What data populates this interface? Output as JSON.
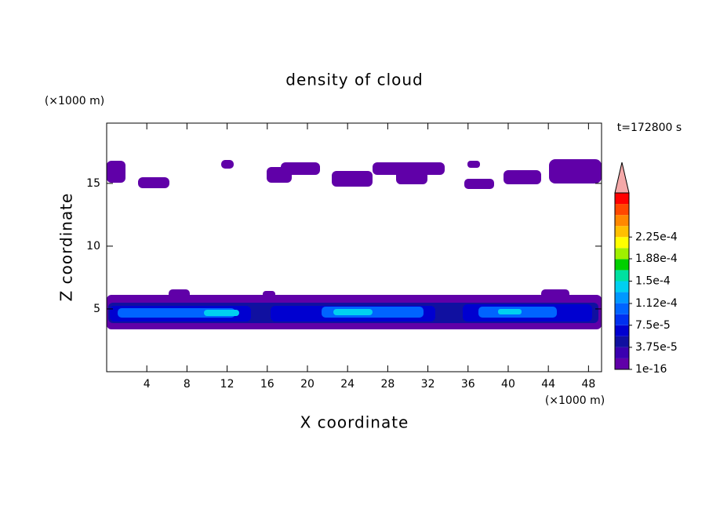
{
  "chart_data": {
    "type": "contour",
    "title": "density of cloud",
    "xlabel": "X coordinate",
    "ylabel": "Z coordinate",
    "x_unit": "(×1000 m)",
    "y_unit": "(×1000 m)",
    "time_label": "t=172800 s",
    "xlim": [
      0,
      49.3
    ],
    "xticks": [
      4,
      8,
      12,
      16,
      20,
      24,
      28,
      32,
      36,
      40,
      44,
      48
    ],
    "ylim": [
      0,
      19.8
    ],
    "yticks": [
      5,
      10,
      15
    ],
    "colorbar": {
      "ticks": [
        {
          "value": 1e-16,
          "label": "1e-16"
        },
        {
          "value": 3.75e-05,
          "label": "3.75e-5"
        },
        {
          "value": 7.5e-05,
          "label": "7.5e-5"
        },
        {
          "value": 0.000112,
          "label": "1.12e-4"
        },
        {
          "value": 0.00015,
          "label": "1.5e-4"
        },
        {
          "value": 0.000188,
          "label": "1.88e-4"
        },
        {
          "value": 0.000225,
          "label": "2.25e-4"
        }
      ],
      "colors": [
        "#6000a8",
        "#3a00b0",
        "#1010a0",
        "#0000d0",
        "#0030f0",
        "#0064ff",
        "#0098ff",
        "#00d0f0",
        "#00e0a0",
        "#00d000",
        "#a0f000",
        "#ffff00",
        "#ffc000",
        "#ff8800",
        "#ff4800",
        "#ff0000"
      ],
      "over_color": "#f4a8a8"
    }
  }
}
